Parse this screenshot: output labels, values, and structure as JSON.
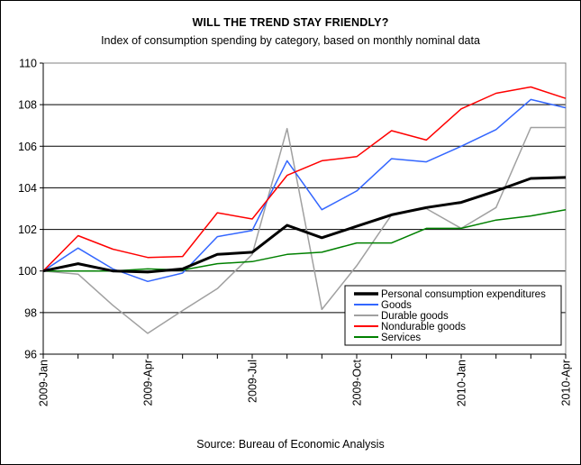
{
  "chart_data": {
    "type": "line",
    "title": "WILL THE TREND STAY FRIENDLY?",
    "subtitle": "Index of consumption spending by category, based on monthly nominal data",
    "source": "Source: Bureau of Economic Analysis",
    "x": [
      "2009-Jan",
      "2009-Feb",
      "2009-Mar",
      "2009-Apr",
      "2009-May",
      "2009-Jun",
      "2009-Jul",
      "2009-Aug",
      "2009-Sep",
      "2009-Oct",
      "2009-Nov",
      "2009-Dec",
      "2010-Jan",
      "2010-Feb",
      "2010-Mar",
      "2010-Apr"
    ],
    "x_tick_labels": [
      "2009-Jan",
      "2009-Apr",
      "2009-Jul",
      "2009-Oct",
      "2010-Jan",
      "2010-Apr"
    ],
    "y_ticks": [
      96,
      98,
      100,
      102,
      104,
      106,
      108,
      110
    ],
    "ylim": [
      96,
      110
    ],
    "grid": "horizontal",
    "legend_position": "bottom-right",
    "series": [
      {
        "name": "Personal consumption expenditures",
        "color": "#000000",
        "width": 3,
        "values": [
          100.0,
          100.35,
          100.0,
          99.95,
          100.1,
          100.8,
          100.9,
          102.2,
          101.6,
          102.15,
          102.7,
          103.05,
          103.3,
          103.85,
          104.45,
          104.5
        ]
      },
      {
        "name": "Goods",
        "color": "#3366FF",
        "width": 1.5,
        "values": [
          100.0,
          101.1,
          100.1,
          99.5,
          99.9,
          101.65,
          101.95,
          105.3,
          102.95,
          103.85,
          105.4,
          105.25,
          106.0,
          106.8,
          108.25,
          107.85
        ]
      },
      {
        "name": "Durable goods",
        "color": "#A0A0A0",
        "width": 1.5,
        "values": [
          100.0,
          99.85,
          98.35,
          97.0,
          98.1,
          99.15,
          100.8,
          106.85,
          98.15,
          100.25,
          102.7,
          103.0,
          102.05,
          103.05,
          106.9,
          106.9
        ]
      },
      {
        "name": "Nondurable goods",
        "color": "#FF0000",
        "width": 1.5,
        "values": [
          100.0,
          101.7,
          101.05,
          100.65,
          100.7,
          102.8,
          102.5,
          104.6,
          105.3,
          105.5,
          106.75,
          106.3,
          107.8,
          108.55,
          108.85,
          108.3
        ]
      },
      {
        "name": "Services",
        "color": "#008000",
        "width": 1.5,
        "values": [
          100.0,
          100.0,
          100.0,
          100.1,
          100.05,
          100.35,
          100.45,
          100.8,
          100.9,
          101.35,
          101.35,
          102.05,
          102.05,
          102.45,
          102.65,
          102.95
        ]
      }
    ]
  }
}
